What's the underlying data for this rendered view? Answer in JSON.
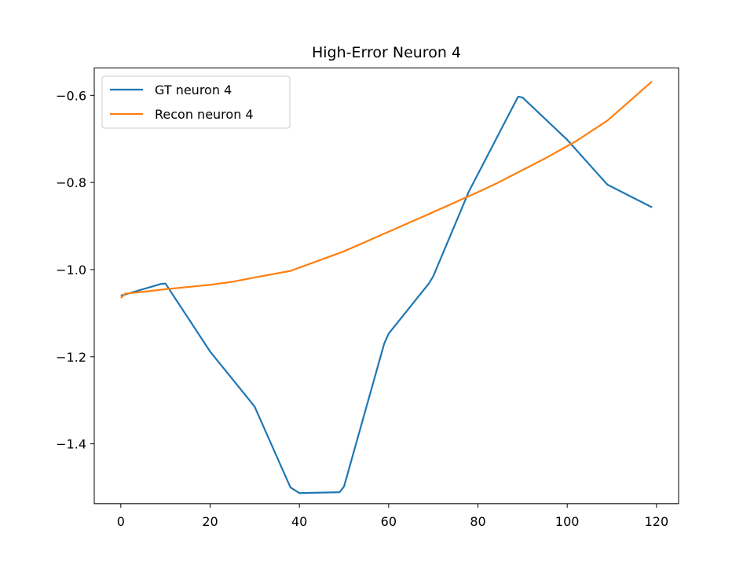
{
  "chart_data": {
    "type": "line",
    "title": "High-Error Neuron 4",
    "xlabel": "",
    "ylabel": "",
    "xlim": [
      -5.95,
      124.95
    ],
    "ylim": [
      -1.5375,
      -0.537
    ],
    "xticks": [
      0,
      20,
      40,
      60,
      80,
      100,
      120
    ],
    "yticks": [
      -1.4,
      -1.2,
      -1.0,
      -0.8,
      -0.6
    ],
    "xtick_labels": [
      "0",
      "20",
      "40",
      "60",
      "80",
      "100",
      "120"
    ],
    "ytick_labels": [
      "−1.4",
      "−1.2",
      "−1.0",
      "−0.8",
      "−0.6"
    ],
    "grid": false,
    "legend_position": "upper-left",
    "series": [
      {
        "name": "GT neuron 4",
        "color": "#1f77b4",
        "x": [
          0,
          9,
          10,
          20,
          29,
          30,
          38,
          40,
          49,
          50,
          59,
          60,
          69,
          70,
          78,
          89,
          90,
          100,
          109,
          119
        ],
        "y": [
          -1.06,
          -1.033,
          -1.032,
          -1.188,
          -1.302,
          -1.315,
          -1.5,
          -1.513,
          -1.511,
          -1.498,
          -1.17,
          -1.147,
          -1.032,
          -1.015,
          -0.82,
          -0.603,
          -0.605,
          -0.702,
          -0.805,
          -0.857
        ]
      },
      {
        "name": "Recon neuron 4",
        "color": "#ff7f0e",
        "x": [
          0,
          1,
          5,
          10,
          20,
          25,
          30,
          38,
          50,
          60,
          70,
          80,
          84,
          95,
          102,
          109,
          119
        ],
        "y": [
          -1.065,
          -1.055,
          -1.051,
          -1.045,
          -1.035,
          -1.028,
          -1.018,
          -1.003,
          -0.958,
          -0.913,
          -0.868,
          -0.822,
          -0.803,
          -0.745,
          -0.705,
          -0.658,
          -0.568
        ]
      }
    ]
  }
}
